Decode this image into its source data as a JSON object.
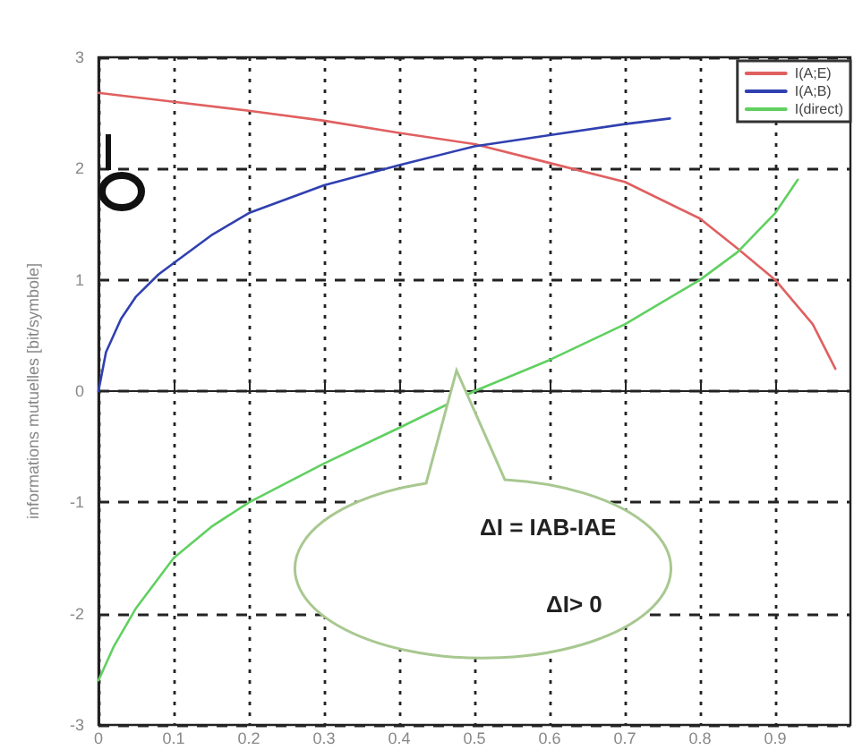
{
  "chart_data": {
    "type": "line",
    "ylabel": "informations mutuelles [bit/symbole]",
    "xlim": [
      0,
      1
    ],
    "xticks": [
      0,
      0.1,
      0.2,
      0.3,
      0.4,
      0.5,
      0.6,
      0.7,
      0.8,
      0.9
    ],
    "ylim": [
      -3,
      3
    ],
    "yticks": [
      -3,
      -2,
      -1,
      0,
      1,
      2,
      3
    ],
    "grid": true,
    "legend": "top right",
    "marker": "none",
    "line_style": "solid",
    "annotations": [
      "ΔI = IAB-IAE",
      "ΔI> 0"
    ],
    "series": [
      {
        "name": "I(A;E)",
        "color": "#e06060",
        "x": [
          0,
          0.1,
          0.2,
          0.3,
          0.4,
          0.5,
          0.6,
          0.7,
          0.8,
          0.85,
          0.9,
          0.95,
          0.98
        ],
        "values": [
          2.68,
          2.6,
          2.52,
          2.43,
          2.32,
          2.22,
          2.05,
          1.88,
          1.55,
          1.28,
          1.0,
          0.6,
          0.2
        ]
      },
      {
        "name": "I(A;B)",
        "color": "#3040b0",
        "x": [
          0,
          0.01,
          0.03,
          0.05,
          0.08,
          0.1,
          0.15,
          0.2,
          0.3,
          0.4,
          0.5,
          0.6,
          0.7,
          0.76
        ],
        "values": [
          0,
          0.35,
          0.65,
          0.85,
          1.05,
          1.15,
          1.4,
          1.6,
          1.85,
          2.03,
          2.2,
          2.3,
          2.4,
          2.45
        ]
      },
      {
        "name": "I(direct)",
        "color": "#60d060",
        "x": [
          0,
          0.02,
          0.05,
          0.1,
          0.15,
          0.2,
          0.3,
          0.4,
          0.5,
          0.6,
          0.7,
          0.8,
          0.85,
          0.9,
          0.93
        ],
        "values": [
          -2.6,
          -2.3,
          -1.95,
          -1.5,
          -1.22,
          -1.0,
          -0.65,
          -0.33,
          0.0,
          0.28,
          0.6,
          1.0,
          1.25,
          1.6,
          1.9
        ]
      }
    ]
  }
}
